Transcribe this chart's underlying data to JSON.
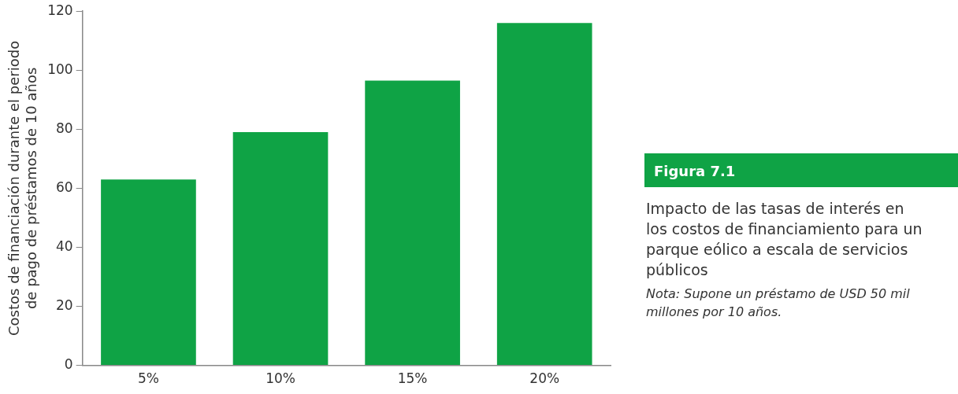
{
  "chart_data": {
    "type": "bar",
    "title": "Figura 7.1",
    "subtitle": "Impacto de las tasas de interés en los costos de financiamiento para un parque eólico a escala de servicios públicos",
    "ylabel": "Costos de financiación durante el periodo\nde pago de préstamos de 10 años",
    "annotations": [
      "Nota: Supone un préstamo de USD 50 mil millones por 10 años."
    ],
    "categories": [
      "5%",
      "10%",
      "15%",
      "20%"
    ],
    "values": [
      63,
      79,
      96.5,
      116
    ],
    "color": "#0fa345",
    "ylim": [
      0,
      120
    ],
    "yticks": [
      0,
      20,
      40,
      60,
      80,
      100,
      120
    ],
    "grid": false,
    "legend": false
  }
}
